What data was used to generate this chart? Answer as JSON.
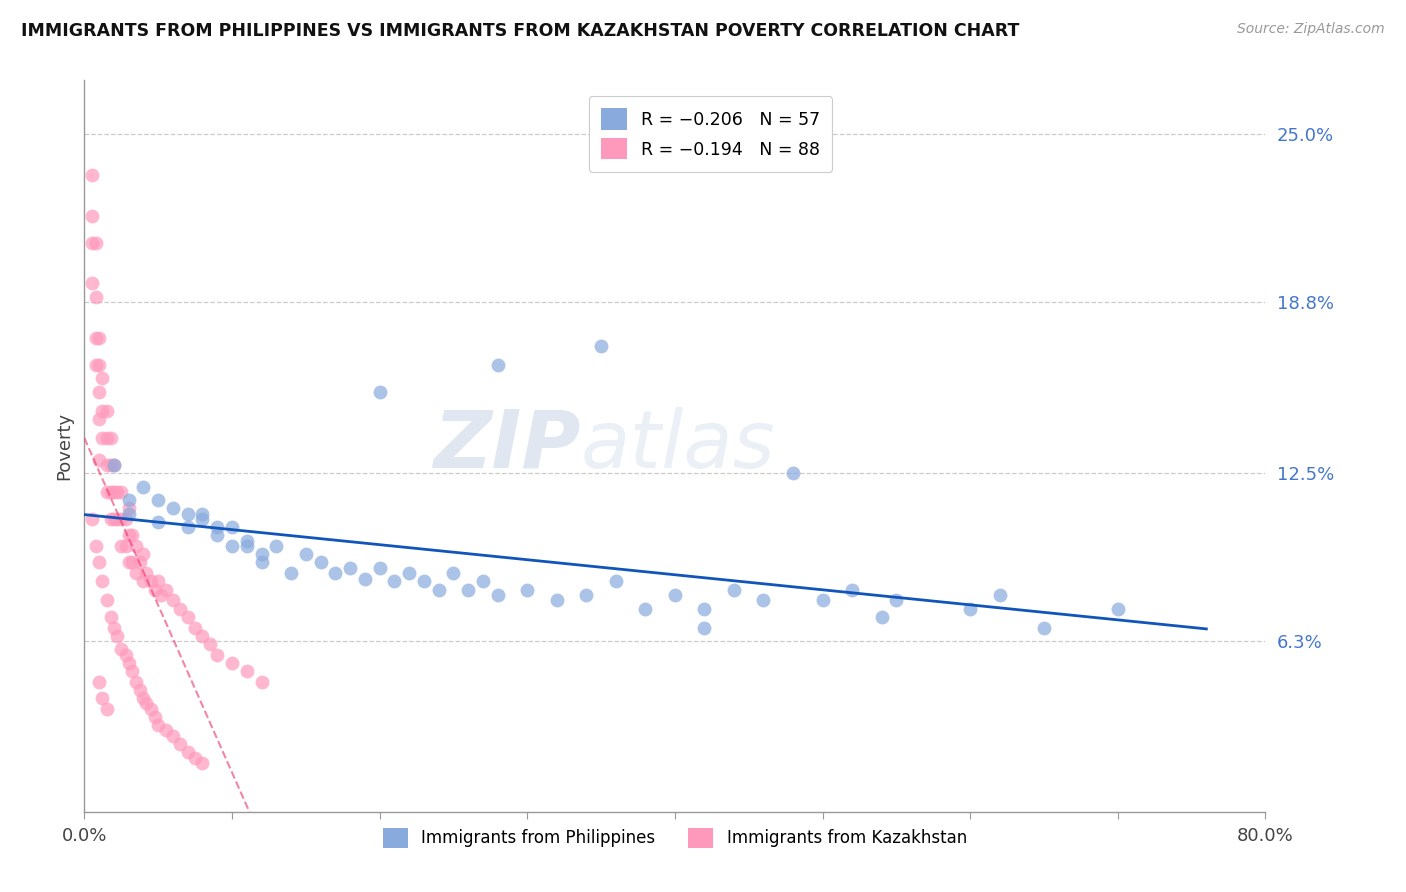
{
  "title": "IMMIGRANTS FROM PHILIPPINES VS IMMIGRANTS FROM KAZAKHSTAN POVERTY CORRELATION CHART",
  "source": "Source: ZipAtlas.com",
  "ylabel": "Poverty",
  "ytick_labels": [
    "25.0%",
    "18.8%",
    "12.5%",
    "6.3%"
  ],
  "ytick_values": [
    0.25,
    0.188,
    0.125,
    0.063
  ],
  "xmin": 0.0,
  "xmax": 0.8,
  "ymin": 0.0,
  "ymax": 0.27,
  "color_blue": "#88AADD",
  "color_pink": "#FF99BB",
  "color_line_blue": "#1155BB",
  "color_line_pink": "#EE3366",
  "legend_r1": "R = −0.206",
  "legend_n1": "N = 57",
  "legend_r2": "R = −0.194",
  "legend_n2": "N = 88",
  "watermark_zip": "ZIP",
  "watermark_atlas": "atlas",
  "legend_label1": "Immigrants from Philippines",
  "legend_label2": "Immigrants from Kazakhstan",
  "philippines_x": [
    0.02,
    0.03,
    0.03,
    0.04,
    0.05,
    0.05,
    0.06,
    0.07,
    0.07,
    0.08,
    0.08,
    0.09,
    0.09,
    0.1,
    0.1,
    0.11,
    0.11,
    0.12,
    0.12,
    0.13,
    0.14,
    0.15,
    0.16,
    0.17,
    0.18,
    0.19,
    0.2,
    0.21,
    0.22,
    0.23,
    0.24,
    0.25,
    0.26,
    0.27,
    0.28,
    0.3,
    0.32,
    0.34,
    0.36,
    0.38,
    0.4,
    0.42,
    0.44,
    0.46,
    0.5,
    0.52,
    0.54,
    0.6,
    0.62,
    0.7,
    0.2,
    0.28,
    0.35,
    0.42,
    0.48,
    0.55,
    0.65
  ],
  "philippines_y": [
    0.128,
    0.115,
    0.11,
    0.12,
    0.115,
    0.107,
    0.112,
    0.105,
    0.11,
    0.11,
    0.108,
    0.105,
    0.102,
    0.105,
    0.098,
    0.1,
    0.098,
    0.095,
    0.092,
    0.098,
    0.088,
    0.095,
    0.092,
    0.088,
    0.09,
    0.086,
    0.09,
    0.085,
    0.088,
    0.085,
    0.082,
    0.088,
    0.082,
    0.085,
    0.08,
    0.082,
    0.078,
    0.08,
    0.085,
    0.075,
    0.08,
    0.075,
    0.082,
    0.078,
    0.078,
    0.082,
    0.072,
    0.075,
    0.08,
    0.075,
    0.155,
    0.165,
    0.172,
    0.068,
    0.125,
    0.078,
    0.068
  ],
  "kazakhstan_x": [
    0.005,
    0.005,
    0.005,
    0.005,
    0.008,
    0.008,
    0.008,
    0.008,
    0.01,
    0.01,
    0.01,
    0.01,
    0.01,
    0.012,
    0.012,
    0.012,
    0.015,
    0.015,
    0.015,
    0.015,
    0.018,
    0.018,
    0.018,
    0.018,
    0.02,
    0.02,
    0.02,
    0.022,
    0.022,
    0.025,
    0.025,
    0.025,
    0.028,
    0.028,
    0.03,
    0.03,
    0.03,
    0.032,
    0.032,
    0.035,
    0.035,
    0.038,
    0.04,
    0.04,
    0.042,
    0.045,
    0.048,
    0.05,
    0.052,
    0.055,
    0.06,
    0.065,
    0.07,
    0.075,
    0.08,
    0.085,
    0.09,
    0.1,
    0.11,
    0.12,
    0.005,
    0.008,
    0.01,
    0.012,
    0.015,
    0.018,
    0.02,
    0.022,
    0.025,
    0.028,
    0.03,
    0.032,
    0.035,
    0.038,
    0.04,
    0.042,
    0.045,
    0.048,
    0.05,
    0.055,
    0.06,
    0.065,
    0.07,
    0.075,
    0.08,
    0.01,
    0.012,
    0.015
  ],
  "kazakhstan_y": [
    0.235,
    0.22,
    0.21,
    0.195,
    0.21,
    0.19,
    0.175,
    0.165,
    0.175,
    0.165,
    0.155,
    0.145,
    0.13,
    0.16,
    0.148,
    0.138,
    0.148,
    0.138,
    0.128,
    0.118,
    0.138,
    0.128,
    0.118,
    0.108,
    0.128,
    0.118,
    0.108,
    0.118,
    0.108,
    0.118,
    0.108,
    0.098,
    0.108,
    0.098,
    0.112,
    0.102,
    0.092,
    0.102,
    0.092,
    0.098,
    0.088,
    0.092,
    0.095,
    0.085,
    0.088,
    0.085,
    0.082,
    0.085,
    0.08,
    0.082,
    0.078,
    0.075,
    0.072,
    0.068,
    0.065,
    0.062,
    0.058,
    0.055,
    0.052,
    0.048,
    0.108,
    0.098,
    0.092,
    0.085,
    0.078,
    0.072,
    0.068,
    0.065,
    0.06,
    0.058,
    0.055,
    0.052,
    0.048,
    0.045,
    0.042,
    0.04,
    0.038,
    0.035,
    0.032,
    0.03,
    0.028,
    0.025,
    0.022,
    0.02,
    0.018,
    0.048,
    0.042,
    0.038
  ]
}
